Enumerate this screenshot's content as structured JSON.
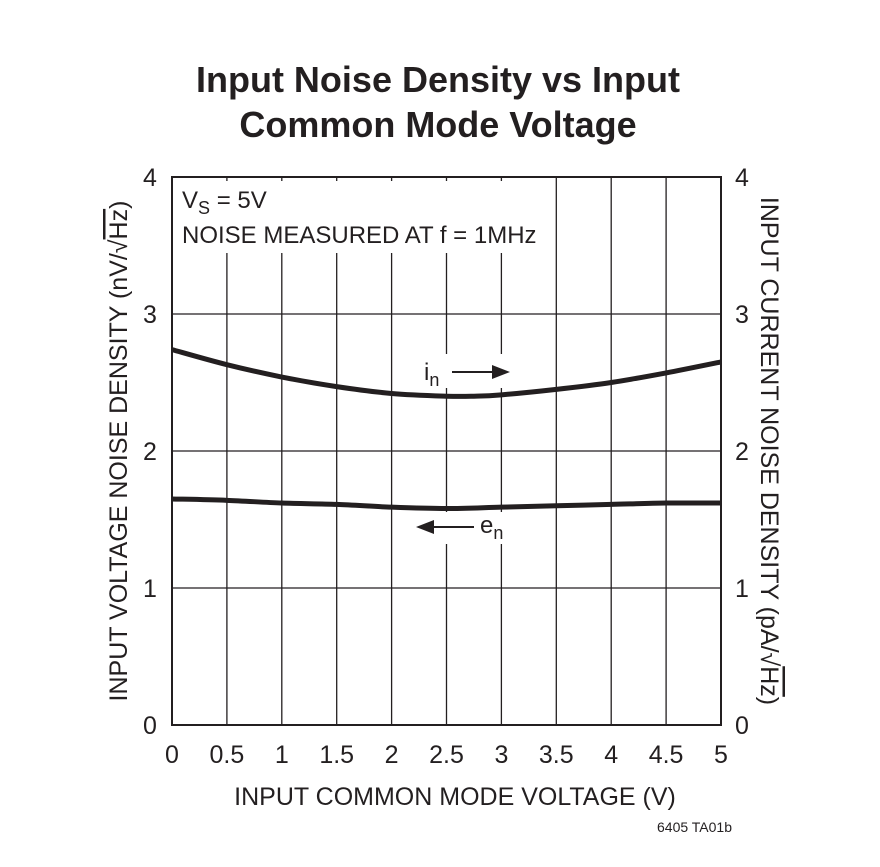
{
  "chart_data": {
    "type": "line",
    "title_line1": "Input Noise Density vs Input",
    "title_line2": "Common Mode Voltage",
    "xlabel": "INPUT COMMON MODE VOLTAGE (V)",
    "ylabel_left_prefix": "INPUT VOLTAGE NOISE DENSITY (nV/",
    "ylabel_left_root": "Hz",
    "ylabel_left_suffix": ")",
    "ylabel_right_prefix": "INPUT CURRENT NOISE DENSITY (pA/",
    "ylabel_right_root": "Hz",
    "ylabel_right_suffix": ")",
    "xlim": [
      0,
      5
    ],
    "ylim": [
      0,
      4
    ],
    "xticks": [
      "0",
      "0.5",
      "1",
      "1.5",
      "2",
      "2.5",
      "3",
      "3.5",
      "4",
      "4.5",
      "5"
    ],
    "yticks_left": [
      "0",
      "1",
      "2",
      "3",
      "4"
    ],
    "yticks_right": [
      "0",
      "1",
      "2",
      "3",
      "4"
    ],
    "grid": true,
    "annotation": {
      "vs_sym": "V",
      "vs_sub": "S",
      "vs_rest": " = 5V",
      "line2": "NOISE MEASURED AT f = 1MHz"
    },
    "series": [
      {
        "name": "i",
        "name_sub": "n",
        "axis": "right",
        "x": [
          0,
          0.5,
          1,
          1.5,
          2,
          2.5,
          2.75,
          3,
          3.5,
          4,
          4.5,
          5
        ],
        "y": [
          2.74,
          2.63,
          2.54,
          2.47,
          2.42,
          2.4,
          2.4,
          2.41,
          2.45,
          2.5,
          2.57,
          2.65
        ]
      },
      {
        "name": "e",
        "name_sub": "n",
        "axis": "left",
        "x": [
          0,
          0.5,
          1,
          1.5,
          2,
          2.5,
          3,
          3.5,
          4,
          4.5,
          5
        ],
        "y": [
          1.65,
          1.64,
          1.62,
          1.61,
          1.59,
          1.58,
          1.59,
          1.6,
          1.61,
          1.62,
          1.62
        ]
      }
    ]
  },
  "figure_id": "6405 TA01b"
}
